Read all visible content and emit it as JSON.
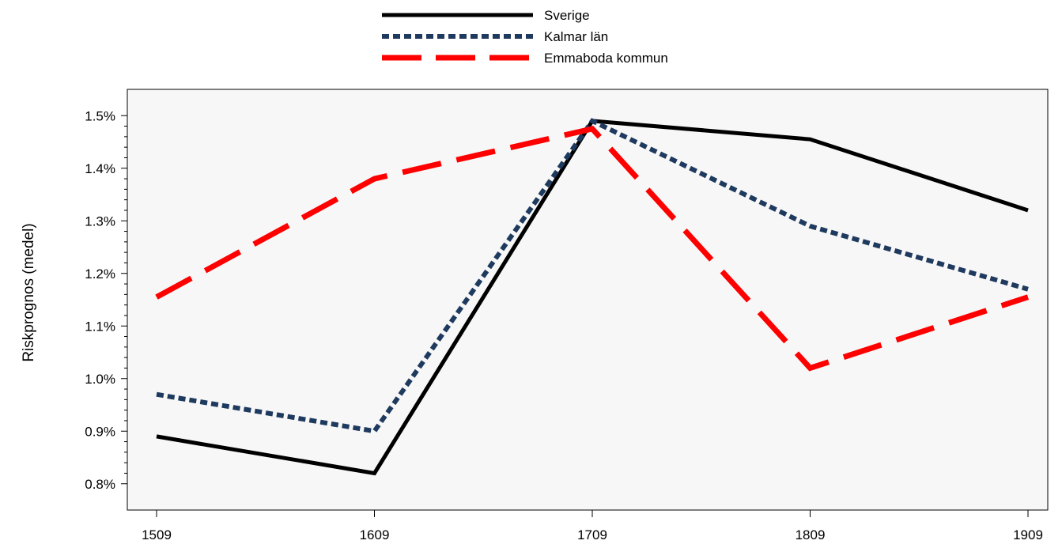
{
  "chart_data": {
    "type": "line",
    "title": "",
    "xlabel": "",
    "ylabel": "Riskprognos (medel)",
    "x": [
      "1509",
      "1609",
      "1709",
      "1809",
      "1909"
    ],
    "ylim": [
      0.0075,
      0.0155
    ],
    "yticks": [
      {
        "value": 0.008,
        "label": "0.8%"
      },
      {
        "value": 0.009,
        "label": "0.9%"
      },
      {
        "value": 0.01,
        "label": "1.0%"
      },
      {
        "value": 0.011,
        "label": "1.1%"
      },
      {
        "value": 0.012,
        "label": "1.2%"
      },
      {
        "value": 0.013,
        "label": "1.3%"
      },
      {
        "value": 0.014,
        "label": "1.4%"
      },
      {
        "value": 0.015,
        "label": "1.5%"
      }
    ],
    "grid": false,
    "legend_position": "top-center",
    "plot_background": "#f7f7f7",
    "series": [
      {
        "name": "Sverige",
        "values": [
          0.0089,
          0.0082,
          0.0149,
          0.01455,
          0.0132
        ],
        "color": "#000000",
        "style": "solid"
      },
      {
        "name": "Kalmar län",
        "values": [
          0.0097,
          0.009,
          0.0149,
          0.0129,
          0.0117
        ],
        "color": "#1f3a5f",
        "style": "dotted"
      },
      {
        "name": "Emmaboda kommun",
        "values": [
          0.01155,
          0.0138,
          0.01475,
          0.0102,
          0.01155
        ],
        "color": "#ff0000",
        "style": "dashed"
      }
    ]
  }
}
